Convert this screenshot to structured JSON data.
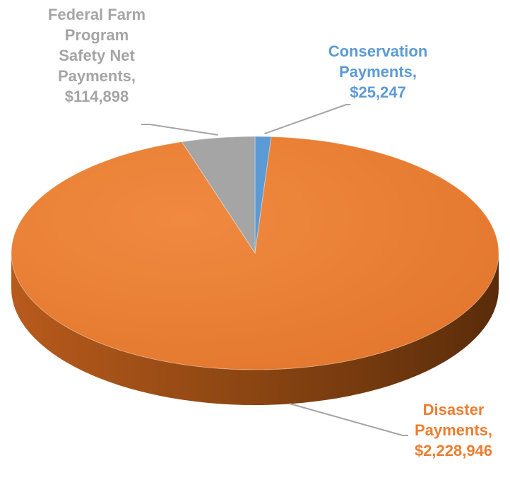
{
  "chart_data": {
    "type": "pie",
    "style": "3d",
    "slices": [
      {
        "name": "Disaster Payments",
        "value": 2228946,
        "label_lines": [
          "Disaster",
          "Payments,",
          "$2,228,946"
        ],
        "color": "#ED7D31"
      },
      {
        "name": "Federal Farm Program Safety Net Payments",
        "value": 114898,
        "label_lines": [
          "Federal Farm",
          "Program",
          "Safety Net",
          "Payments,",
          "$114,898"
        ],
        "color": "#A5A5A5"
      },
      {
        "name": "Conservation Payments",
        "value": 25247,
        "label_lines": [
          "Conservation",
          "Payments,",
          "$25,247"
        ],
        "color": "#5B9BD5"
      }
    ]
  }
}
